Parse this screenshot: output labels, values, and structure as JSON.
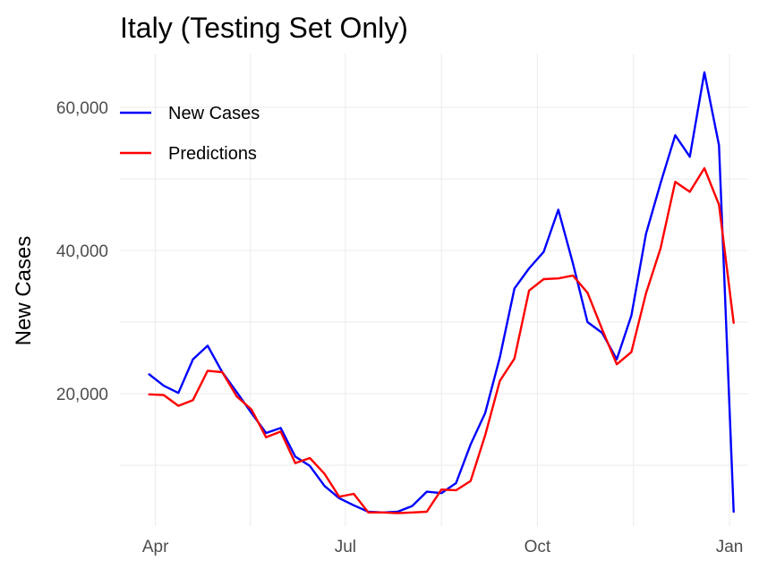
{
  "chart_data": {
    "type": "line",
    "title": "Italy (Testing Set Only)",
    "xlabel": "",
    "ylabel": "New Cases",
    "x_ticks": [
      "Apr",
      "Jul",
      "Oct",
      "Jan"
    ],
    "y_ticks": [
      "20,000",
      "40,000",
      "60,000"
    ],
    "ylim": [
      1500,
      67500
    ],
    "grid": true,
    "legend_position": "top-left",
    "x": [
      "2021-03-29",
      "2021-04-05",
      "2021-04-12",
      "2021-04-19",
      "2021-04-26",
      "2021-05-03",
      "2021-05-10",
      "2021-05-17",
      "2021-05-24",
      "2021-05-31",
      "2021-06-07",
      "2021-06-14",
      "2021-06-21",
      "2021-06-28",
      "2021-07-05",
      "2021-07-12",
      "2021-07-19",
      "2021-07-26",
      "2021-08-02",
      "2021-08-09",
      "2021-08-16",
      "2021-08-23",
      "2021-08-30",
      "2021-09-06",
      "2021-09-13",
      "2021-09-20",
      "2021-09-27",
      "2021-10-04",
      "2021-10-11",
      "2021-10-18",
      "2021-10-25",
      "2021-11-01",
      "2021-11-08",
      "2021-11-15",
      "2021-11-22",
      "2021-11-29",
      "2021-12-06",
      "2021-12-13",
      "2021-12-20",
      "2021-12-27",
      "2022-01-03"
    ],
    "series": [
      {
        "name": "New Cases",
        "color": "#0000ff",
        "values": [
          22700,
          21100,
          20100,
          24800,
          26700,
          23000,
          20200,
          17300,
          14500,
          15200,
          11200,
          9900,
          7100,
          5400,
          4400,
          3500,
          3400,
          3500,
          4300,
          6300,
          6100,
          7500,
          12900,
          17300,
          25100,
          34700,
          37500,
          39800,
          45700,
          38200,
          30000,
          28500,
          24800,
          30900,
          42300,
          49400,
          56100,
          53100,
          64900,
          54700,
          3500
        ]
      },
      {
        "name": "Predictions",
        "color": "#ff0000",
        "values": [
          19900,
          19800,
          18300,
          19100,
          23200,
          23000,
          19600,
          17800,
          13900,
          14700,
          10300,
          11000,
          8800,
          5600,
          6000,
          3400,
          3400,
          3300,
          3400,
          3500,
          6600,
          6500,
          7800,
          14200,
          21800,
          24900,
          34400,
          36000,
          36100,
          36500,
          34100,
          29000,
          24100,
          25800,
          34000,
          40300,
          49600,
          48200,
          51500,
          46400,
          29900
        ]
      }
    ]
  }
}
